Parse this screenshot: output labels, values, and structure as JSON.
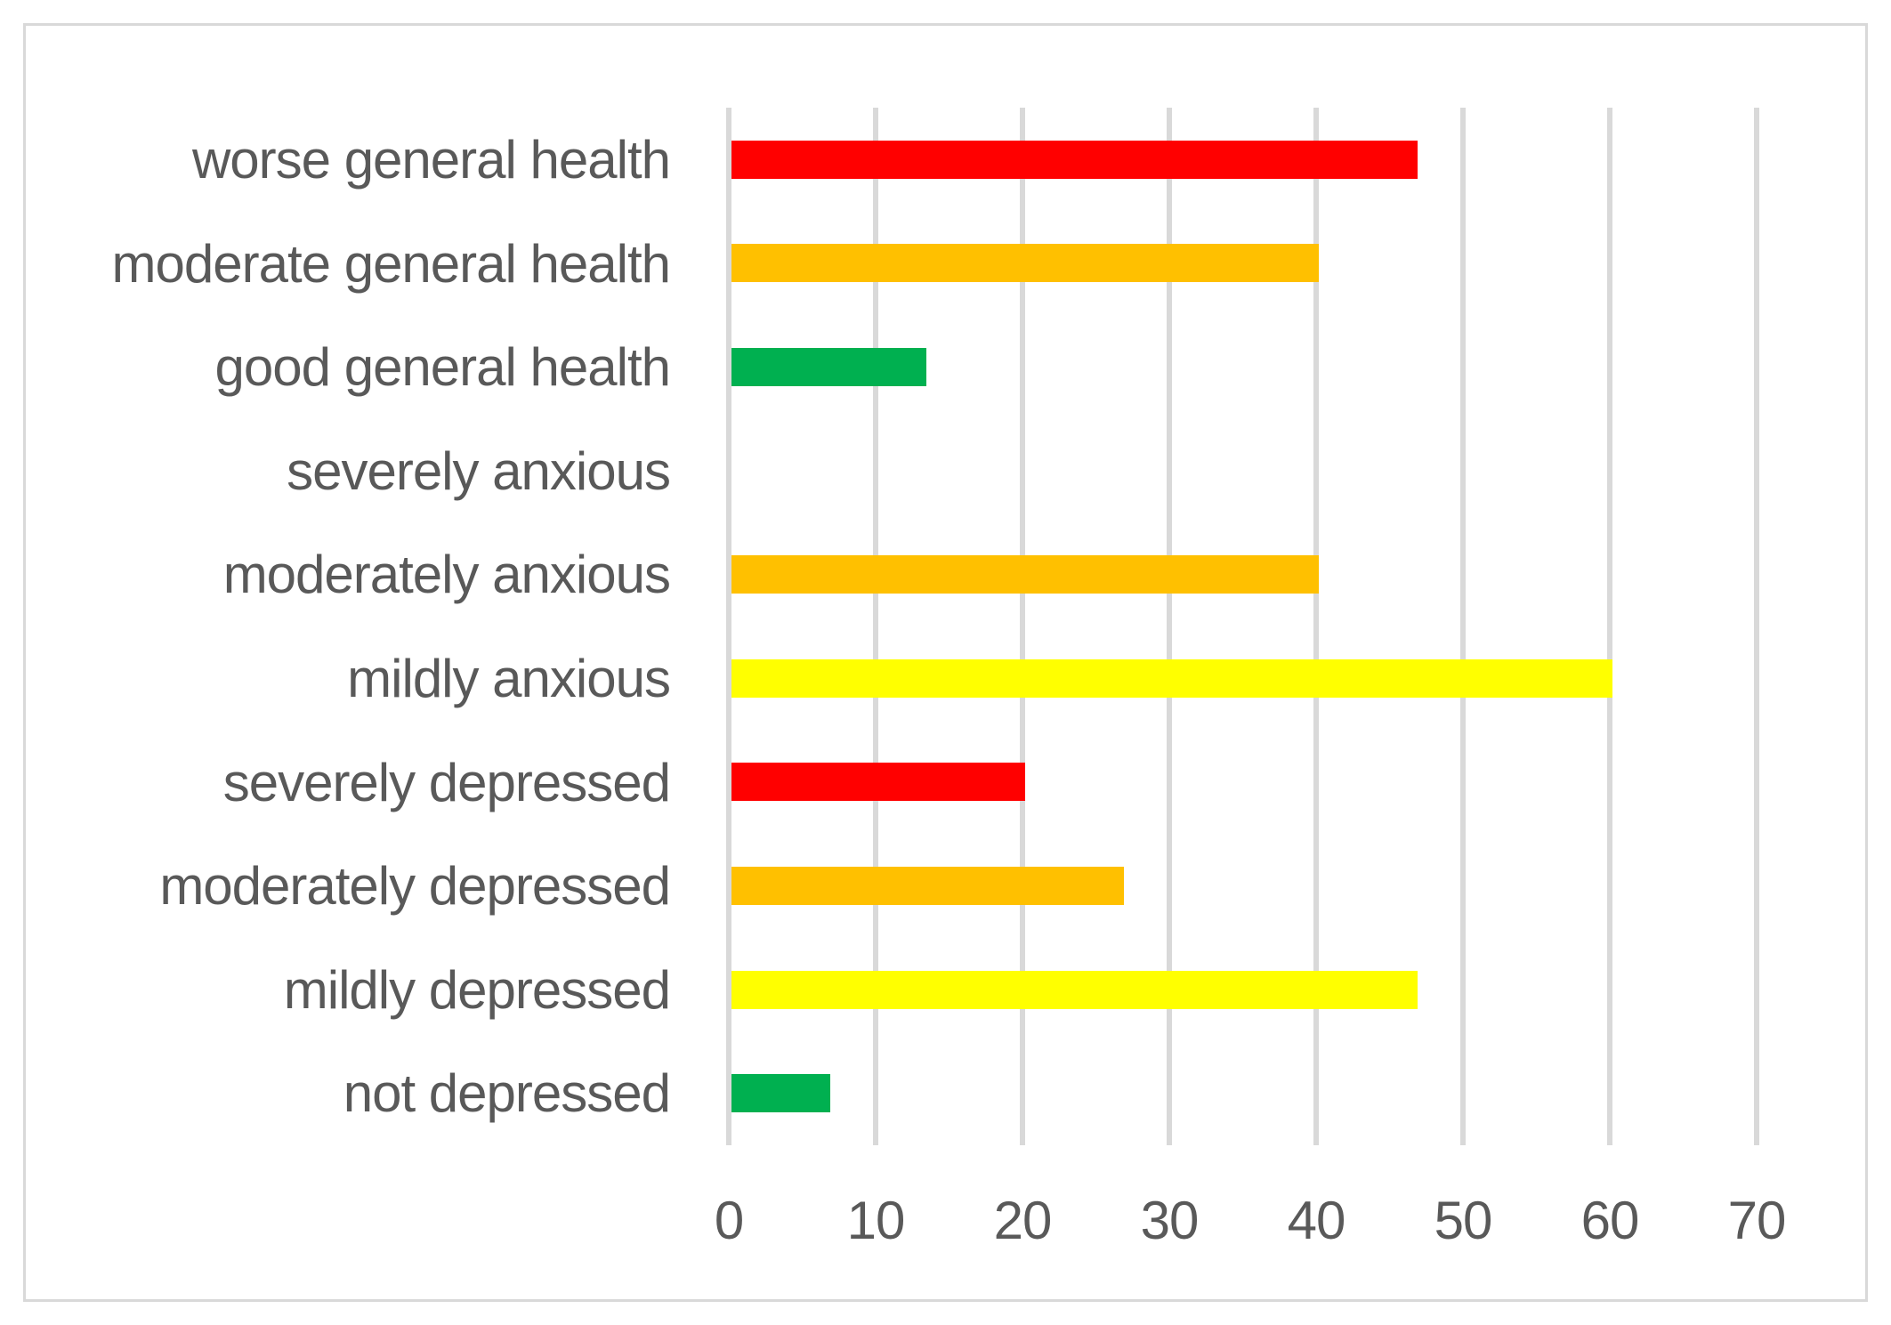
{
  "figure": {
    "background_color": "#FFFFFF",
    "frame_border_color": "#D9D9D9",
    "text_color": "#595959"
  },
  "chart_data": {
    "type": "bar",
    "orientation": "horizontal",
    "title": "",
    "xlabel": "",
    "ylabel": "",
    "categories": [
      "worse general health",
      "moderate general health",
      "good general health",
      "severely anxious",
      "moderately anxious",
      "mildly anxious",
      "severely depressed",
      "moderately depressed",
      "mildly depressed",
      "not depressed"
    ],
    "values": [
      46.7,
      40,
      13.3,
      0,
      40,
      60,
      20,
      26.7,
      46.7,
      6.7
    ],
    "bar_colors": [
      "#FF0000",
      "#FFC000",
      "#00B050",
      null,
      "#FFC000",
      "#FFFF00",
      "#FF0000",
      "#FFC000",
      "#FFFF00",
      "#00B050"
    ],
    "xlim": [
      0,
      70
    ],
    "x_ticks": [
      0,
      10,
      20,
      30,
      40,
      50,
      60,
      70
    ],
    "grid": true,
    "gridline_color": "#D9D9D9",
    "legend_position": "none"
  }
}
